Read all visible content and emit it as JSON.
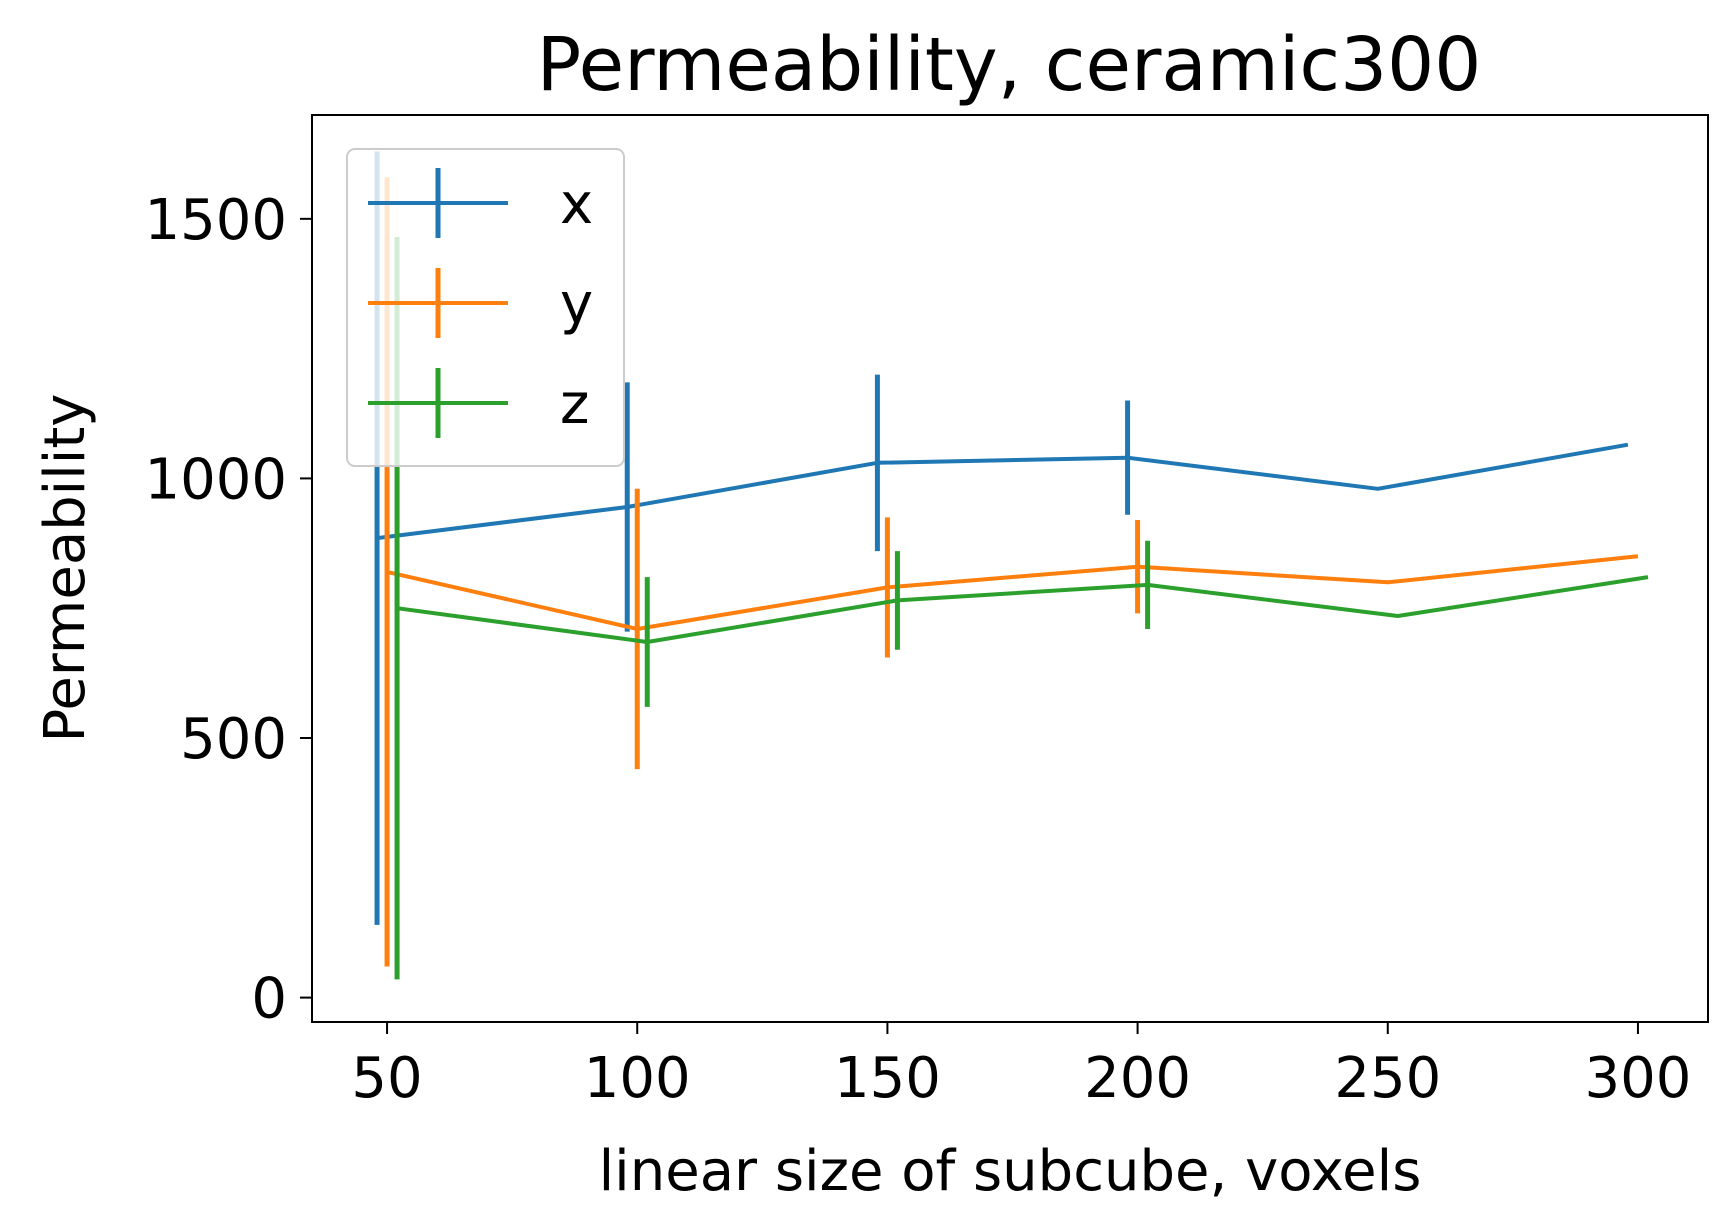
{
  "chart_data": {
    "type": "line",
    "title": "Permeability, ceramic300",
    "xlabel": "linear size of subcube, voxels",
    "ylabel": "Permeability",
    "xlim": [
      35,
      314
    ],
    "ylim": [
      -47,
      1700
    ],
    "xticks": [
      50,
      100,
      150,
      200,
      250,
      300
    ],
    "yticks": [
      0,
      500,
      1000,
      1500
    ],
    "xtick_labels": [
      "50",
      "100",
      "150",
      "200",
      "250",
      "300"
    ],
    "ytick_labels": [
      "0",
      "500",
      "1000",
      "1500"
    ],
    "grid": false,
    "legend_position": "top-left",
    "series": [
      {
        "name": "x",
        "color": "#1f77b4",
        "x": [
          48,
          98,
          148,
          198,
          248,
          298
        ],
        "y": [
          885,
          945,
          1030,
          1040,
          980,
          1065
        ],
        "err": [
          745,
          240,
          170,
          110,
          0,
          0
        ]
      },
      {
        "name": "y",
        "color": "#ff7f0e",
        "x": [
          50,
          100,
          150,
          200,
          250,
          300
        ],
        "y": [
          820,
          710,
          790,
          830,
          800,
          850
        ],
        "err": [
          760,
          270,
          135,
          90,
          0,
          0
        ]
      },
      {
        "name": "z",
        "color": "#2ca02c",
        "x": [
          52,
          102,
          152,
          202,
          252,
          302
        ],
        "y": [
          750,
          685,
          765,
          795,
          735,
          810
        ],
        "err": [
          715,
          125,
          95,
          85,
          0,
          0
        ]
      }
    ]
  }
}
